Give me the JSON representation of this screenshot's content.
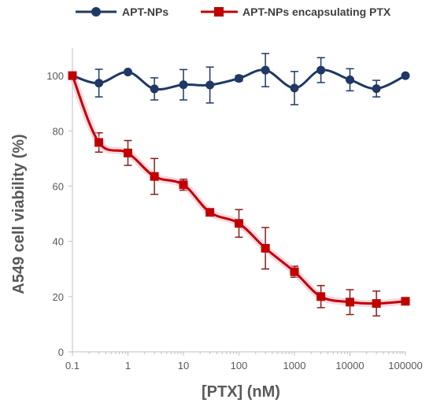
{
  "chart_data": {
    "type": "line",
    "xlabel": "[PTX] (nM)",
    "ylabel": "A549 cell viability (%)",
    "x_scale": "log",
    "xlim": [
      0.1,
      100000
    ],
    "ylim": [
      0,
      110
    ],
    "x_ticks": [
      "0.1",
      "1",
      "10",
      "100",
      "1000",
      "10000",
      "100000"
    ],
    "y_ticks": [
      "0",
      "20",
      "40",
      "60",
      "80",
      "100"
    ],
    "grid": false,
    "legend_position": "top",
    "x": [
      0.1,
      0.3,
      1,
      3,
      10,
      30,
      100,
      300,
      1000,
      3000,
      10000,
      30000,
      100000
    ],
    "series": [
      {
        "name": "APT-NPs",
        "color": "#1f3864",
        "marker": "circle",
        "values": [
          100,
          97.3,
          101.3,
          95.2,
          96.7,
          96.6,
          99,
          102,
          95.5,
          102,
          98.5,
          95.3,
          100
        ],
        "errors": [
          0,
          5,
          0.5,
          4,
          5.5,
          6.5,
          1,
          6,
          6,
          4.5,
          4,
          3,
          0.5
        ]
      },
      {
        "name": "APT-NPs encapsulating PTX",
        "color": "#c00000",
        "marker": "square",
        "values": [
          100,
          75.8,
          72,
          63.5,
          60.5,
          50.5,
          46.5,
          37.5,
          29,
          20,
          18,
          17.5,
          18.3
        ],
        "errors": [
          0,
          3.5,
          4.5,
          6.5,
          2,
          0.5,
          5,
          7.5,
          2,
          4,
          4.5,
          4.5,
          1
        ]
      }
    ]
  }
}
